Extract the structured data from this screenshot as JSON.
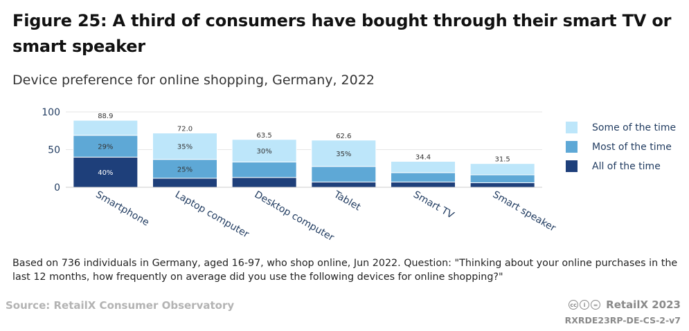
{
  "title": "Figure 25: A third of consumers have bought through their smart TV or smart speaker",
  "subtitle": "Device preference for online shopping, Germany, 2022",
  "note": "Based on 736 individuals in Germany, aged 16-97, who shop online, Jun 2022. Question: \"Thinking about your online purchases in the last 12 months, how frequently on average did you use the following devices for online shopping?\"",
  "source": "Source: RetailX Consumer Observatory",
  "brand": "RetailX 2023",
  "code": "RXRDE23RP-DE-CS-2-v7",
  "colors": {
    "all": "#1e3f7a",
    "most": "#5ea8d6",
    "some": "#bde6fa",
    "grid": "#e6e6e6",
    "axis_text": "#1f3a5f"
  },
  "chart_data": {
    "type": "bar",
    "stacked": true,
    "categories": [
      "Smartphone",
      "Laptop computer",
      "Desktop computer",
      "Tablet",
      "Smart TV",
      "Smart speaker"
    ],
    "series": [
      {
        "name": "All of the time",
        "key": "all",
        "values": [
          40,
          12,
          13,
          7,
          7,
          6
        ],
        "labels": [
          "40%",
          "",
          "",
          "",
          "",
          ""
        ]
      },
      {
        "name": "Most of the time",
        "key": "most",
        "values": [
          29,
          25,
          20.5,
          20.6,
          12.4,
          10.5
        ],
        "labels": [
          "29%",
          "25%",
          "",
          "",
          "",
          ""
        ]
      },
      {
        "name": "Some of the time",
        "key": "some",
        "values": [
          19.9,
          35,
          30,
          35,
          15,
          15
        ],
        "labels": [
          "",
          "35%",
          "30%",
          "35%",
          "",
          ""
        ]
      }
    ],
    "totals": [
      88.9,
      72.0,
      63.5,
      62.6,
      34.4,
      31.5
    ],
    "total_labels": [
      "88.9",
      "72.0",
      "63.5",
      "62.6",
      "34.4",
      "31.5"
    ],
    "y_ticks": [
      0,
      50,
      100
    ],
    "ylim": [
      0,
      100
    ],
    "legend_order": [
      "Some of the time",
      "Most of the time",
      "All of the time"
    ],
    "legend_position": "right"
  }
}
